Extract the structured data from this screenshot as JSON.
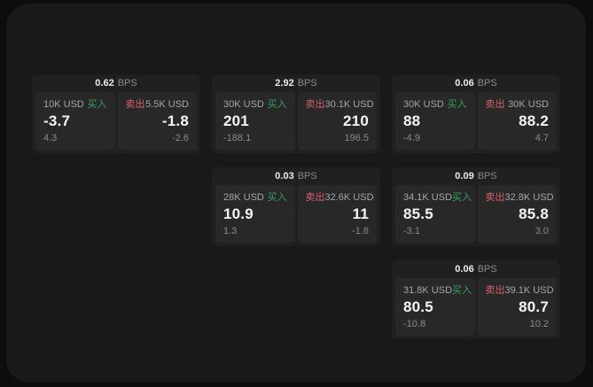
{
  "labels": {
    "bps_unit": "BPS",
    "buy": "买入",
    "sell": "卖出"
  },
  "colors": {
    "outer_background": "#0d0d0d",
    "window_background": "#191919",
    "card_background": "#202020",
    "tile_background": "#282828",
    "buy_green": "#36a05f",
    "sell_red": "#d85f6d",
    "primary_text": "#f5f5f5",
    "secondary_text": "#a6a6a6",
    "muted_text": "#8a8a8a"
  },
  "cards": [
    {
      "row": 1,
      "col": 1,
      "bps": "0.62",
      "buy": {
        "amount": "10K USD",
        "price": "-3.7",
        "secondary": "4.3"
      },
      "sell": {
        "amount": "5.5K USD",
        "price": "-1.8",
        "secondary": "-2.6"
      }
    },
    {
      "row": 1,
      "col": 2,
      "bps": "2.92",
      "buy": {
        "amount": "30K USD",
        "price": "201",
        "secondary": "-188.1"
      },
      "sell": {
        "amount": "30.1K USD",
        "price": "210",
        "secondary": "196.5"
      }
    },
    {
      "row": 1,
      "col": 3,
      "bps": "0.06",
      "buy": {
        "amount": "30K USD",
        "price": "88",
        "secondary": "-4.9"
      },
      "sell": {
        "amount": "30K USD",
        "price": "88.2",
        "secondary": "4.7"
      }
    },
    {
      "row": 2,
      "col": 2,
      "bps": "0.03",
      "buy": {
        "amount": "28K USD",
        "price": "10.9",
        "secondary": "1.3"
      },
      "sell": {
        "amount": "32.6K USD",
        "price": "11",
        "secondary": "-1.8"
      }
    },
    {
      "row": 2,
      "col": 3,
      "bps": "0.09",
      "buy": {
        "amount": "34.1K USD",
        "price": "85.5",
        "secondary": "-3.1"
      },
      "sell": {
        "amount": "32.8K USD",
        "price": "85.8",
        "secondary": "3.0"
      }
    },
    {
      "row": 3,
      "col": 3,
      "bps": "0.06",
      "buy": {
        "amount": "31.8K USD",
        "price": "80.5",
        "secondary": "-10.8"
      },
      "sell": {
        "amount": "39.1K USD",
        "price": "80.7",
        "secondary": "10.2"
      }
    }
  ]
}
